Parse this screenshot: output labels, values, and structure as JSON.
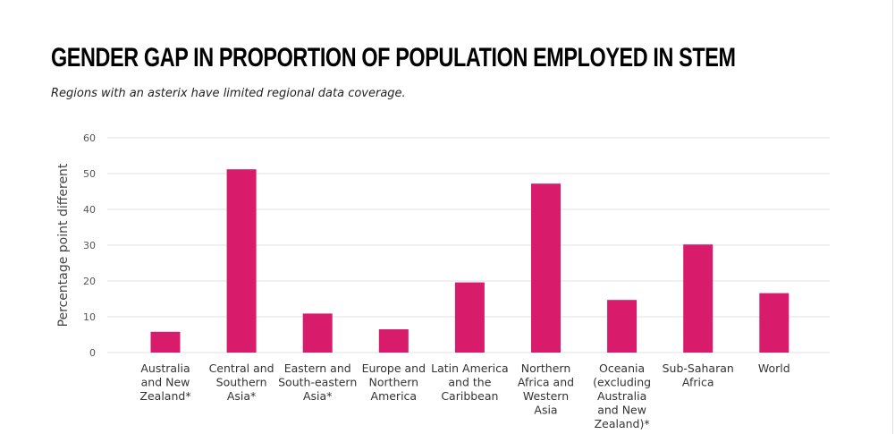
{
  "chart_data": {
    "type": "bar",
    "title": "Gender gap in proportion of population employed in STEM",
    "subtitle": "Regions with an asterix have limited regional data coverage.",
    "xlabel": "",
    "ylabel": "Percentage point different",
    "ylim": [
      0,
      60
    ],
    "yticks": [
      0,
      10,
      20,
      30,
      40,
      50,
      60
    ],
    "grid": true,
    "color": "#D81B6A",
    "categories": [
      [
        "Australia",
        "and New",
        "Zealand*"
      ],
      [
        "Central and",
        "Southern",
        "Asia*"
      ],
      [
        "Eastern and",
        "South-eastern",
        "Asia*"
      ],
      [
        "Europe and",
        "Northern",
        "America"
      ],
      [
        "Latin America",
        "and the",
        "Caribbean"
      ],
      [
        "Northern",
        "Africa and",
        "Western",
        "Asia"
      ],
      [
        "Oceania",
        "(excluding",
        "Australia",
        "and New",
        "Zealand)*"
      ],
      [
        "Sub-Saharan",
        "Africa"
      ],
      [
        "World"
      ]
    ],
    "values": [
      5.8,
      51.2,
      10.9,
      6.5,
      19.6,
      47.2,
      14.7,
      30.2,
      16.6
    ]
  }
}
